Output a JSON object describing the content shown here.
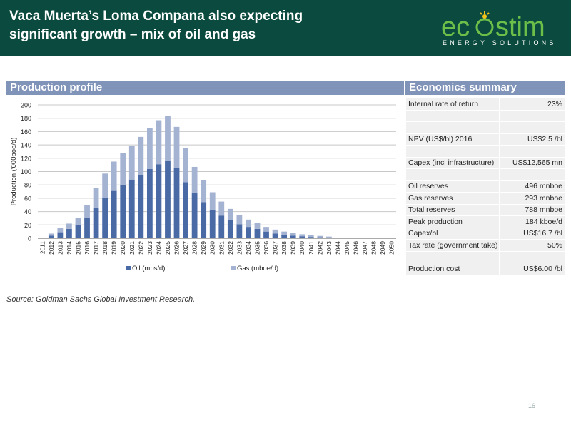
{
  "slide": {
    "title": "Vaca Muerta’s Loma Compana also expecting\nsignificant growth – mix of oil and gas",
    "source": "Source: Goldman Sachs Global Investment Research.",
    "page_number": "16"
  },
  "logo": {
    "word_left": "ec",
    "word_right": "stim",
    "tagline": "ENERGY SOLUTIONS",
    "colors": {
      "green": "#6cc04a",
      "yellow": "#f2c21b",
      "text": "#ffffff"
    }
  },
  "colors": {
    "header_bg": "#0b4a3e",
    "panel_head": "#8093b8",
    "oil": "#4a6aa5",
    "gas": "#a5b3d3"
  },
  "panels": {
    "production_title": "Production profile",
    "economics_title": "Economics summary"
  },
  "chart_data": {
    "type": "bar",
    "stacked": true,
    "ylabel": "Production ('000boe/d)",
    "ylim": [
      0,
      200
    ],
    "yticks": [
      0,
      20,
      40,
      60,
      80,
      100,
      120,
      140,
      160,
      180,
      200
    ],
    "grid": true,
    "legend_position": "bottom",
    "categories": [
      "2011",
      "2012",
      "2013",
      "2014",
      "2015",
      "2016",
      "2017",
      "2018",
      "2019",
      "2020",
      "2021",
      "2022",
      "2023",
      "2024",
      "2025",
      "2026",
      "2027",
      "2028",
      "2029",
      "2030",
      "2031",
      "2032",
      "2033",
      "2034",
      "2035",
      "2036",
      "2037",
      "2038",
      "2039",
      "2040",
      "2041",
      "2042",
      "2043",
      "2044",
      "2045",
      "2046",
      "2047",
      "2048",
      "2049",
      "2050"
    ],
    "series": [
      {
        "name": "Oil (mbs/d)",
        "values": [
          0,
          4,
          9,
          14,
          20,
          31,
          46,
          60,
          71,
          80,
          88,
          95,
          104,
          111,
          116,
          105,
          84,
          68,
          54,
          43,
          34,
          27,
          21,
          17,
          14,
          10,
          7,
          5,
          4,
          3,
          2,
          1.5,
          1,
          0.5,
          0,
          0,
          0,
          0,
          0,
          0
        ]
      },
      {
        "name": "Gas (mboe/d)",
        "values": [
          0,
          3,
          6,
          8,
          11,
          19,
          29,
          37,
          44,
          48,
          51,
          57,
          61,
          66,
          68,
          62,
          51,
          39,
          33,
          26,
          21,
          17,
          14,
          11,
          9,
          7,
          6,
          5,
          4,
          3,
          2.5,
          2,
          1.5,
          0.5,
          0,
          0,
          0,
          0,
          0,
          0
        ]
      }
    ]
  },
  "economics": {
    "rows": [
      {
        "label": "Internal rate of return",
        "value": "23%"
      },
      {
        "label": "",
        "value": ""
      },
      {
        "label": "",
        "value": ""
      },
      {
        "label": "NPV (US$/bl) 2016",
        "value": "US$2.5 /bl"
      },
      {
        "label": "",
        "value": ""
      },
      {
        "label": "Capex (incl infrastructure)",
        "value": "US$12,565 mn"
      },
      {
        "label": "",
        "value": ""
      },
      {
        "label": "Oil reserves",
        "value": "496 mnboe"
      },
      {
        "label": "Gas reserves",
        "value": "293 mnboe"
      },
      {
        "label": "Total reserves",
        "value": "788 mnboe"
      },
      {
        "label": "Peak production",
        "value": "184 kboe/d"
      },
      {
        "label": "Capex/bl",
        "value": "US$16.7 /bl"
      },
      {
        "label": "Tax rate (government take)",
        "value": "50%"
      },
      {
        "label": "",
        "value": ""
      },
      {
        "label": "Production cost",
        "value": "US$6.00 /bl"
      }
    ]
  }
}
